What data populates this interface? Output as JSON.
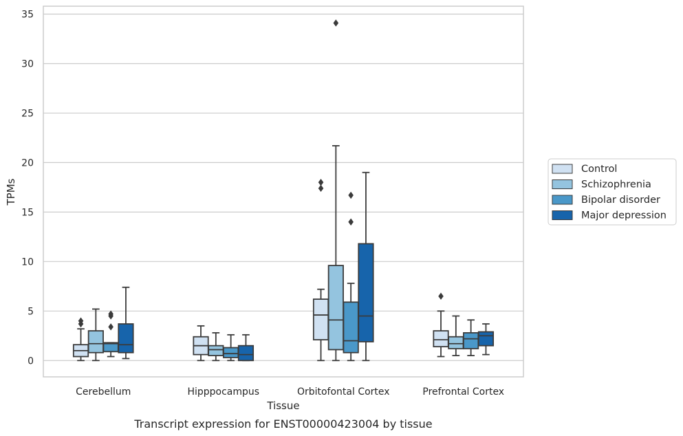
{
  "chart_data": {
    "type": "boxplot",
    "title": "",
    "caption": "Transcript expression for ENST00000423004 by tissue",
    "xlabel": "Tissue",
    "ylabel": "TPMs",
    "ylim": [
      -1.65,
      35.8
    ],
    "yticks": [
      0,
      5,
      10,
      15,
      20,
      25,
      30,
      35
    ],
    "grid": "horizontal",
    "legend_position": "right",
    "categories": [
      "Cerebellum",
      "Hipppocampus",
      "Orbitofontal Cortex",
      "Prefrontal Cortex"
    ],
    "series": [
      {
        "name": "Control",
        "color": "#d0e1f2",
        "boxes": [
          {
            "whisker_low": 0.0,
            "q1": 0.4,
            "median": 1.0,
            "q3": 1.6,
            "whisker_high": 3.2,
            "outliers": [
              3.7,
              4.0
            ]
          },
          {
            "whisker_low": 0.0,
            "q1": 0.6,
            "median": 1.5,
            "q3": 2.4,
            "whisker_high": 3.5,
            "outliers": []
          },
          {
            "whisker_low": 0.0,
            "q1": 2.1,
            "median": 4.6,
            "q3": 6.2,
            "whisker_high": 7.2,
            "outliers": [
              17.4,
              18.0
            ]
          },
          {
            "whisker_low": 0.4,
            "q1": 1.4,
            "median": 2.1,
            "q3": 3.0,
            "whisker_high": 5.0,
            "outliers": [
              6.5
            ]
          }
        ]
      },
      {
        "name": "Schizophrenia",
        "color": "#94c4df",
        "boxes": [
          {
            "whisker_low": 0.0,
            "q1": 0.8,
            "median": 1.7,
            "q3": 3.0,
            "whisker_high": 5.2,
            "outliers": []
          },
          {
            "whisker_low": 0.0,
            "q1": 0.5,
            "median": 1.1,
            "q3": 1.5,
            "whisker_high": 2.8,
            "outliers": []
          },
          {
            "whisker_low": 0.0,
            "q1": 1.1,
            "median": 4.1,
            "q3": 9.6,
            "whisker_high": 21.7,
            "outliers": [
              34.1
            ]
          },
          {
            "whisker_low": 0.5,
            "q1": 1.2,
            "median": 1.7,
            "q3": 2.4,
            "whisker_high": 4.5,
            "outliers": []
          }
        ]
      },
      {
        "name": "Bipolar disorder",
        "color": "#4a98c9",
        "boxes": [
          {
            "whisker_low": 0.4,
            "q1": 0.9,
            "median": 1.7,
            "q3": 1.8,
            "whisker_high": 1.8,
            "outliers": [
              3.4,
              4.5,
              4.7
            ]
          },
          {
            "whisker_low": 0.0,
            "q1": 0.3,
            "median": 0.7,
            "q3": 1.3,
            "whisker_high": 2.6,
            "outliers": []
          },
          {
            "whisker_low": 0.0,
            "q1": 0.8,
            "median": 2.0,
            "q3": 5.9,
            "whisker_high": 7.8,
            "outliers": [
              14.0,
              16.7
            ]
          },
          {
            "whisker_low": 0.5,
            "q1": 1.2,
            "median": 2.2,
            "q3": 2.8,
            "whisker_high": 4.1,
            "outliers": []
          }
        ]
      },
      {
        "name": "Major depression",
        "color": "#1764ab",
        "boxes": [
          {
            "whisker_low": 0.2,
            "q1": 0.8,
            "median": 1.6,
            "q3": 3.7,
            "whisker_high": 7.4,
            "outliers": []
          },
          {
            "whisker_low": 0.0,
            "q1": 0.0,
            "median": 0.6,
            "q3": 1.5,
            "whisker_high": 2.6,
            "outliers": []
          },
          {
            "whisker_low": 0.0,
            "q1": 1.9,
            "median": 4.5,
            "q3": 11.8,
            "whisker_high": 19.0,
            "outliers": []
          },
          {
            "whisker_low": 0.6,
            "q1": 1.5,
            "median": 2.5,
            "q3": 2.9,
            "whisker_high": 3.7,
            "outliers": []
          }
        ]
      }
    ]
  }
}
